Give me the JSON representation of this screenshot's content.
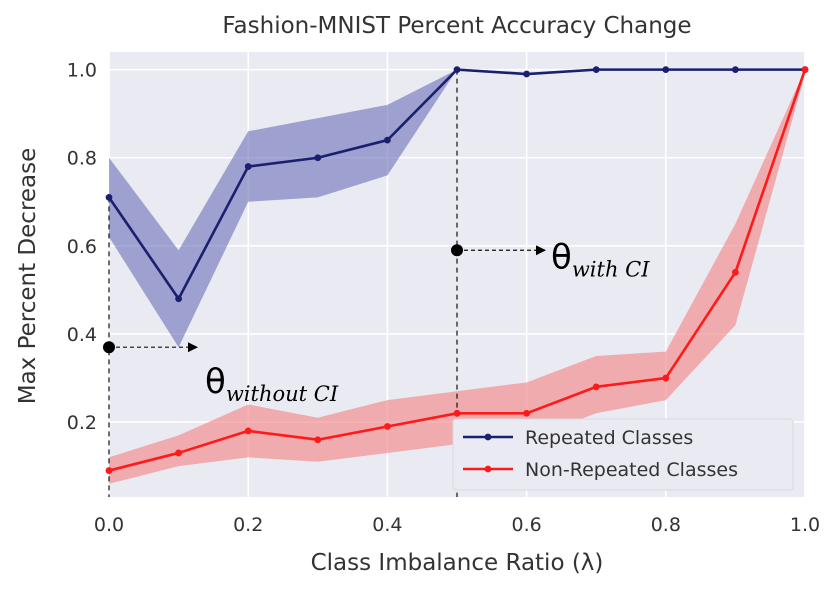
{
  "chart_data": {
    "type": "line",
    "title": "Fashion-MNIST Percent Accuracy Change",
    "xlabel": "Class Imbalance Ratio (λ)",
    "ylabel": "Max Percent Decrease",
    "xlim": [
      0.0,
      1.0
    ],
    "ylim": [
      0.03,
      1.04
    ],
    "x_ticks": [
      "0.0",
      "0.2",
      "0.4",
      "0.6",
      "0.8",
      "1.0"
    ],
    "y_ticks": [
      "0.2",
      "0.4",
      "0.6",
      "0.8",
      "1.0"
    ],
    "grid": true,
    "legend_position": "lower-right",
    "x": [
      0.0,
      0.1,
      0.2,
      0.3,
      0.4,
      0.5,
      0.6,
      0.7,
      0.8,
      0.9,
      1.0
    ],
    "series": [
      {
        "name": "Repeated Classes",
        "color": "#1a1f6e",
        "band_color": "#6b70b8",
        "values": [
          0.71,
          0.48,
          0.78,
          0.8,
          0.84,
          1.0,
          0.99,
          1.0,
          1.0,
          1.0,
          1.0
        ],
        "ci_lower": [
          0.62,
          0.37,
          0.7,
          0.71,
          0.76,
          1.0,
          0.99,
          1.0,
          1.0,
          1.0,
          1.0
        ],
        "ci_upper": [
          0.8,
          0.59,
          0.86,
          0.89,
          0.92,
          1.0,
          0.99,
          1.0,
          1.0,
          1.0,
          1.0
        ]
      },
      {
        "name": "Non-Repeated Classes",
        "color": "#ff1a1a",
        "band_color": "#f28080",
        "values": [
          0.09,
          0.13,
          0.18,
          0.16,
          0.19,
          0.22,
          0.22,
          0.28,
          0.3,
          0.54,
          1.0
        ],
        "ci_lower": [
          0.06,
          0.1,
          0.12,
          0.11,
          0.13,
          0.15,
          0.16,
          0.22,
          0.25,
          0.42,
          0.99
        ],
        "ci_upper": [
          0.12,
          0.17,
          0.24,
          0.21,
          0.25,
          0.27,
          0.29,
          0.35,
          0.36,
          0.65,
          1.0
        ]
      }
    ],
    "annotations": [
      {
        "symbol": "θ",
        "subscript": "without CI",
        "x": 0.0,
        "y": 0.37
      },
      {
        "symbol": "θ",
        "subscript": "with CI",
        "x": 0.5,
        "y": 0.59
      }
    ]
  }
}
